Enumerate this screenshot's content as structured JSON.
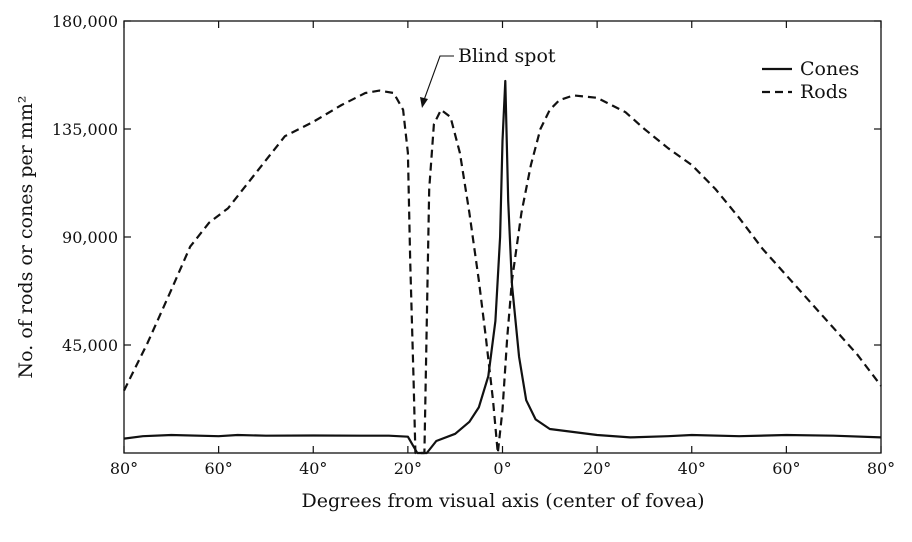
{
  "chart_data": {
    "type": "line",
    "title": "",
    "xlabel": "Degrees from visual axis (center of fovea)",
    "ylabel": "No. of rods or cones per mm²",
    "xlim": [
      -80,
      80
    ],
    "ylim": [
      0,
      180000
    ],
    "x_ticks": [
      -80,
      -60,
      -40,
      -20,
      0,
      20,
      40,
      60,
      80
    ],
    "x_tick_labels": [
      "80°",
      "60°",
      "40°",
      "20°",
      "0°",
      "20°",
      "40°",
      "60°",
      "80°"
    ],
    "y_ticks": [
      45000,
      90000,
      135000,
      180000
    ],
    "y_tick_labels": [
      "45,000",
      "90,000",
      "135,000",
      "180,000"
    ],
    "grid": false,
    "legend": {
      "position": "top-right",
      "entries": [
        {
          "label": "Cones",
          "style": "solid"
        },
        {
          "label": "Rods",
          "style": "dashed"
        }
      ]
    },
    "annotations": [
      {
        "text": "Blind spot",
        "points_to": [
          -17.5,
          145000
        ]
      }
    ],
    "series": [
      {
        "name": "Cones",
        "style": "solid",
        "points": [
          [
            -80,
            6000
          ],
          [
            -76,
            7000
          ],
          [
            -70,
            7500
          ],
          [
            -60,
            7000
          ],
          [
            -56,
            7500
          ],
          [
            -50,
            7200
          ],
          [
            -40,
            7300
          ],
          [
            -30,
            7200
          ],
          [
            -24,
            7200
          ],
          [
            -20,
            6800
          ],
          [
            -18,
            0
          ],
          [
            -16,
            0
          ],
          [
            -14,
            5000
          ],
          [
            -10,
            8000
          ],
          [
            -7,
            13000
          ],
          [
            -5,
            19000
          ],
          [
            -3,
            32000
          ],
          [
            -1.5,
            55000
          ],
          [
            -0.5,
            90000
          ],
          [
            0,
            130000
          ],
          [
            0.6,
            155000
          ],
          [
            1.2,
            105000
          ],
          [
            2,
            70000
          ],
          [
            3.5,
            40000
          ],
          [
            5,
            22000
          ],
          [
            7,
            14000
          ],
          [
            10,
            10000
          ],
          [
            20,
            7500
          ],
          [
            27,
            6500
          ],
          [
            35,
            7000
          ],
          [
            40,
            7500
          ],
          [
            50,
            7000
          ],
          [
            60,
            7500
          ],
          [
            70,
            7200
          ],
          [
            80,
            6500
          ]
        ]
      },
      {
        "name": "Rods",
        "style": "dashed",
        "points": [
          [
            -80,
            26000
          ],
          [
            -75,
            46000
          ],
          [
            -70,
            68000
          ],
          [
            -66,
            86000
          ],
          [
            -62,
            96000
          ],
          [
            -58,
            102000
          ],
          [
            -54,
            112000
          ],
          [
            -50,
            122000
          ],
          [
            -46,
            132000
          ],
          [
            -40,
            138000
          ],
          [
            -34,
            145000
          ],
          [
            -29,
            150000
          ],
          [
            -26,
            151000
          ],
          [
            -23,
            150000
          ],
          [
            -21,
            143000
          ],
          [
            -20,
            125000
          ],
          [
            -19.5,
            80000
          ],
          [
            -18.8,
            30000
          ],
          [
            -18.4,
            0
          ],
          [
            -16.5,
            0
          ],
          [
            -16,
            55000
          ],
          [
            -15.5,
            110000
          ],
          [
            -14.5,
            137000
          ],
          [
            -13,
            143000
          ],
          [
            -11,
            140000
          ],
          [
            -9,
            125000
          ],
          [
            -7,
            100000
          ],
          [
            -5,
            72000
          ],
          [
            -3.5,
            48000
          ],
          [
            -2,
            22000
          ],
          [
            -1,
            0
          ],
          [
            0,
            18000
          ],
          [
            1,
            48000
          ],
          [
            2,
            72000
          ],
          [
            4,
            100000
          ],
          [
            6,
            120000
          ],
          [
            8,
            135000
          ],
          [
            10,
            143000
          ],
          [
            12,
            147000
          ],
          [
            15,
            149000
          ],
          [
            20,
            148000
          ],
          [
            26,
            142000
          ],
          [
            30,
            135000
          ],
          [
            35,
            127000
          ],
          [
            40,
            120000
          ],
          [
            45,
            110000
          ],
          [
            50,
            98000
          ],
          [
            55,
            85000
          ],
          [
            60,
            74000
          ],
          [
            65,
            63000
          ],
          [
            70,
            52000
          ],
          [
            75,
            41000
          ],
          [
            80,
            28000
          ]
        ]
      }
    ]
  }
}
